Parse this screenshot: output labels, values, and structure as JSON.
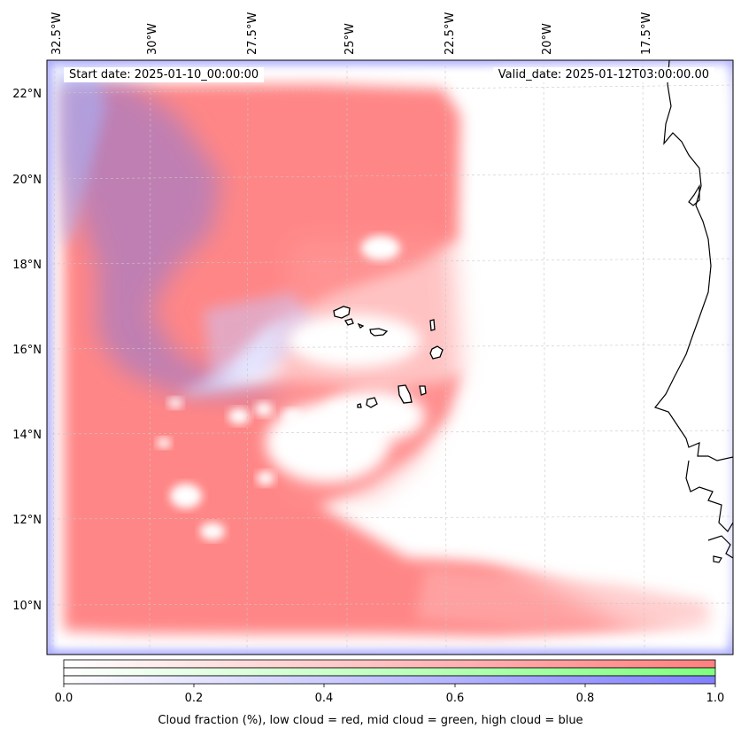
{
  "map": {
    "start_date": "Start date: 2025-01-10_00:00:00",
    "valid_date": "Valid_date: 2025-01-12T03:00:00.00",
    "lon_labels": [
      "32.5°W",
      "30°W",
      "27.5°W",
      "25°W",
      "22.5°W",
      "20°W",
      "17.5°W"
    ],
    "lat_labels": [
      "22°N",
      "20°N",
      "18°N",
      "16°N",
      "14°N",
      "12°N",
      "10°N"
    ],
    "colors": {
      "low_cloud": "#ff8080",
      "mid_cloud": "#80ff80",
      "high_cloud": "#8080ff",
      "coastline": "#000000",
      "grid": "#cccccc"
    }
  },
  "colorbar": {
    "ticks": [
      "0.0",
      "0.2",
      "0.4",
      "0.6",
      "0.8",
      "1.0"
    ],
    "title": "Cloud fraction (%), low cloud = red, mid cloud = green, high cloud = blue"
  }
}
